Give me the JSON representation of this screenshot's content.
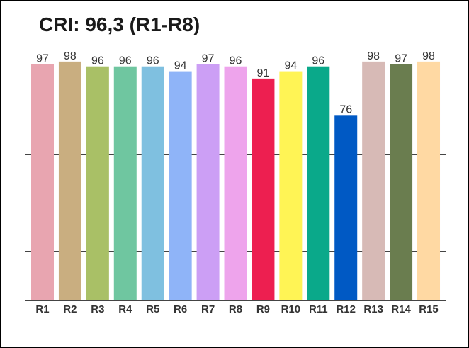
{
  "chart_data": {
    "type": "bar",
    "title": "CRI: 96,3 (R1-R8)",
    "categories": [
      "R1",
      "R2",
      "R3",
      "R4",
      "R5",
      "R6",
      "R7",
      "R8",
      "R9",
      "R10",
      "R11",
      "R12",
      "R13",
      "R14",
      "R15"
    ],
    "values": [
      97,
      98,
      96,
      96,
      96,
      94,
      97,
      96,
      91,
      94,
      96,
      76,
      98,
      97,
      98
    ],
    "colors": [
      "#e8a5b0",
      "#c9ae80",
      "#a9c066",
      "#6fc6a0",
      "#7fc0e0",
      "#8fb4f8",
      "#cc9ff5",
      "#eea4ec",
      "#ed1f50",
      "#fff455",
      "#0aa98a",
      "#0059c4",
      "#d7bab6",
      "#6a7d4f",
      "#ffd9a3"
    ],
    "ylim": [
      0,
      100
    ],
    "grid": true,
    "legend": "none",
    "xlabel": "",
    "ylabel": ""
  }
}
